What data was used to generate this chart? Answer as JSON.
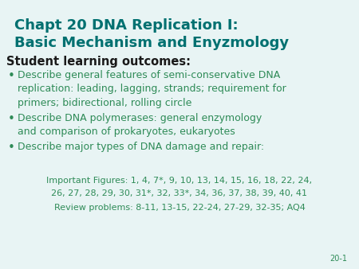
{
  "title_line1": "Chapt 20 DNA Replication I:",
  "title_line2": "Basic Mechanism and Enyzmology",
  "title_color": "#007070",
  "subtitle": "Student learning outcomes:",
  "subtitle_color": "#1a1a1a",
  "bullet_color": "#2e8b57",
  "bullet_text_color": "#2e8b57",
  "bullets": [
    "Describe general features of semi-conservative DNA\nreplication: leading, lagging, strands; requirement for\nprimers; bidirectional, rolling circle",
    "Describe DNA polymerases: general enzymology\nand comparison of prokaryotes, eukaryotes",
    "Describe major types of DNA damage and repair:"
  ],
  "important_figures_line1": "Important Figures: 1, 4, 7*, 9, 10, 13, 14, 15, 16, 18, 22, 24,",
  "important_figures_line2": "26, 27, 28, 29, 30, 31*, 32, 33*, 34, 36, 37, 38, 39, 40, 41",
  "review_problems": "Review problems: 8-11, 13-15, 22-24, 27-29, 32-35; AQ4",
  "figures_color": "#2e8b57",
  "page_label": "20-1",
  "background_color": "#e8f4f4"
}
